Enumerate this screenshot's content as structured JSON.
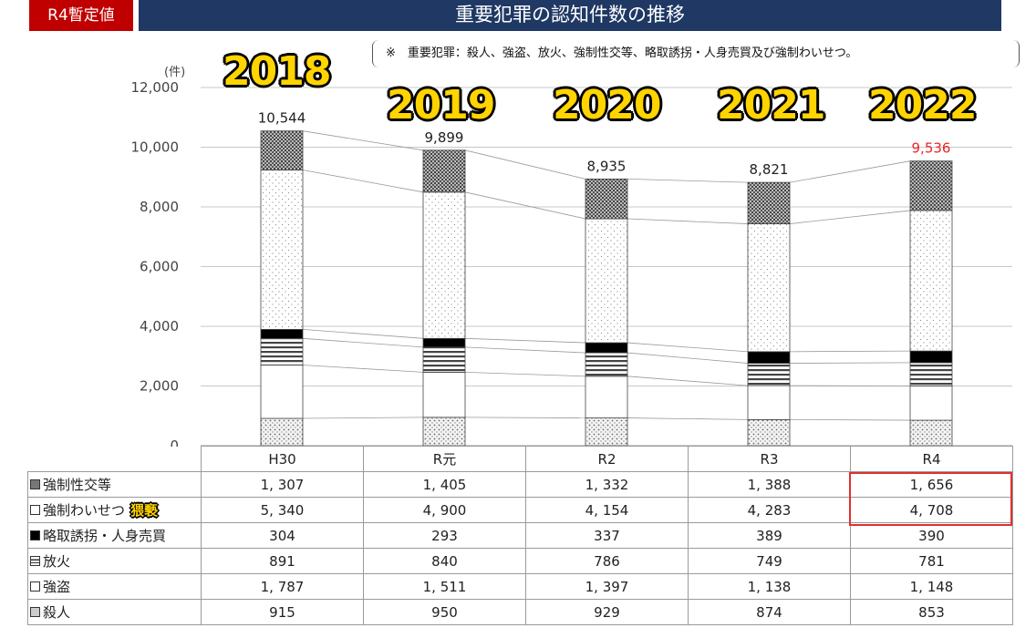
{
  "header": {
    "badge": "R4暫定値",
    "title": "重要犯罪の認知件数の推移",
    "note": "※　重要犯罪：殺人、強盗、放火、強制性交等、略取誘拐・人身売買及び強制わいせつ。"
  },
  "year_overlays": [
    "2018",
    "2019",
    "2020",
    "2021",
    "2022"
  ],
  "sticker_text": "猥褻",
  "chart_data": {
    "type": "bar",
    "stacked": true,
    "unit": "(件)",
    "categories": [
      "H30",
      "R元",
      "R2",
      "R3",
      "R4"
    ],
    "ylim": [
      0,
      12000
    ],
    "yticks": [
      0,
      2000,
      4000,
      6000,
      8000,
      10000,
      12000
    ],
    "ytick_labels": [
      "0",
      "2,000",
      "4,000",
      "6,000",
      "8,000",
      "10,000",
      "12,000"
    ],
    "totals": [
      10544,
      9899,
      8935,
      8821,
      9536
    ],
    "total_labels": [
      "10,544",
      "9,899",
      "8,935",
      "8,821",
      "9,536"
    ],
    "total_colors": [
      "#222222",
      "#222222",
      "#222222",
      "#222222",
      "#ee2222"
    ],
    "grid": true,
    "legend": "table-below",
    "series": [
      {
        "name": "殺人",
        "values": [
          915,
          950,
          929,
          874,
          853
        ],
        "labels": [
          "915",
          "950",
          "929",
          "874",
          "853"
        ],
        "pattern": "dots"
      },
      {
        "name": "強盗",
        "values": [
          1787,
          1511,
          1397,
          1138,
          1148
        ],
        "labels": [
          "1, 787",
          "1, 511",
          "1, 397",
          "1, 138",
          "1, 148"
        ],
        "pattern": "white"
      },
      {
        "name": "放火",
        "values": [
          891,
          840,
          786,
          749,
          781
        ],
        "labels": [
          "891",
          "840",
          "786",
          "749",
          "781"
        ],
        "pattern": "hlines"
      },
      {
        "name": "略取誘拐・人身売買",
        "values": [
          304,
          293,
          337,
          389,
          390
        ],
        "labels": [
          "304",
          "293",
          "337",
          "389",
          "390"
        ],
        "pattern": "black"
      },
      {
        "name": "強制わいせつ",
        "values": [
          5340,
          4900,
          4154,
          4283,
          4708
        ],
        "labels": [
          "5, 340",
          "4, 900",
          "4, 154",
          "4, 283",
          "4, 708"
        ],
        "pattern": "lightdots"
      },
      {
        "name": "強制性交等",
        "values": [
          1307,
          1405,
          1332,
          1388,
          1656
        ],
        "labels": [
          "1, 307",
          "1, 405",
          "1, 332",
          "1, 388",
          "1, 656"
        ],
        "pattern": "crosshatch"
      }
    ]
  }
}
